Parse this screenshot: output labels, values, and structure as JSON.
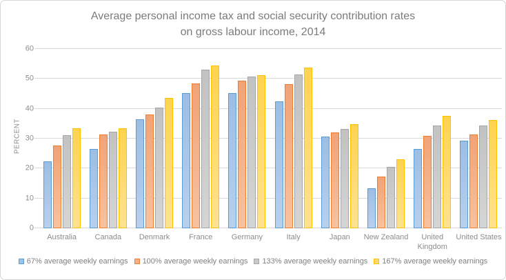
{
  "title": {
    "line1": "Average personal income tax and social security contribution rates",
    "line2": "on gross labour income, 2014"
  },
  "colors": {
    "background": "#ffffff",
    "chart_border": "#d6d6d6",
    "gridline": "#d9d9d9",
    "title_text": "#7b7b7b",
    "axis_text": "#8c8c8c",
    "legend_text": "#7f7f7f"
  },
  "chart_data": {
    "type": "bar",
    "title": "Average personal income tax and social security contribution rates on gross labour income, 2014",
    "xlabel": "",
    "ylabel": "PERCENT",
    "ylim": [
      0,
      60
    ],
    "y_ticks": [
      0,
      10,
      20,
      30,
      40,
      50,
      60
    ],
    "grid": true,
    "legend_position": "bottom",
    "categories": [
      "Australia",
      "Canada",
      "Denmark",
      "France",
      "Germany",
      "Italy",
      "Japan",
      "New Zealand",
      "United Kingdom",
      "United States"
    ],
    "series": [
      {
        "name": "67% average weekly earnings",
        "color": "#9DC3E6",
        "border": "#5B9BD5",
        "fill_top": "#9CBEE4",
        "fill_bottom": "#B7D0EE",
        "values": [
          22.3,
          26.6,
          36.4,
          45.3,
          45.2,
          42.4,
          30.6,
          13.5,
          26.5,
          29.3
        ]
      },
      {
        "name": "100% average weekly earnings",
        "color": "#F4B183",
        "border": "#ED7D31",
        "fill_top": "#F1A376",
        "fill_bottom": "#F8C29E",
        "values": [
          27.7,
          31.5,
          38.0,
          48.5,
          49.3,
          48.2,
          32.0,
          17.2,
          31.0,
          31.5
        ]
      },
      {
        "name": "133% average weekly earnings",
        "color": "#C9C9C9",
        "border": "#A5A5A5",
        "fill_top": "#C2C2C2",
        "fill_bottom": "#D5D5D5",
        "values": [
          31.2,
          32.4,
          40.3,
          53.0,
          50.8,
          51.5,
          33.2,
          20.5,
          34.5,
          34.5
        ]
      },
      {
        "name": "167% average weekly earnings",
        "color": "#FFD966",
        "border": "#FFC000",
        "fill_top": "#FED34F",
        "fill_bottom": "#FFE290",
        "values": [
          33.4,
          33.4,
          43.6,
          54.4,
          51.3,
          53.8,
          34.8,
          23.0,
          37.6,
          36.3
        ]
      }
    ]
  }
}
